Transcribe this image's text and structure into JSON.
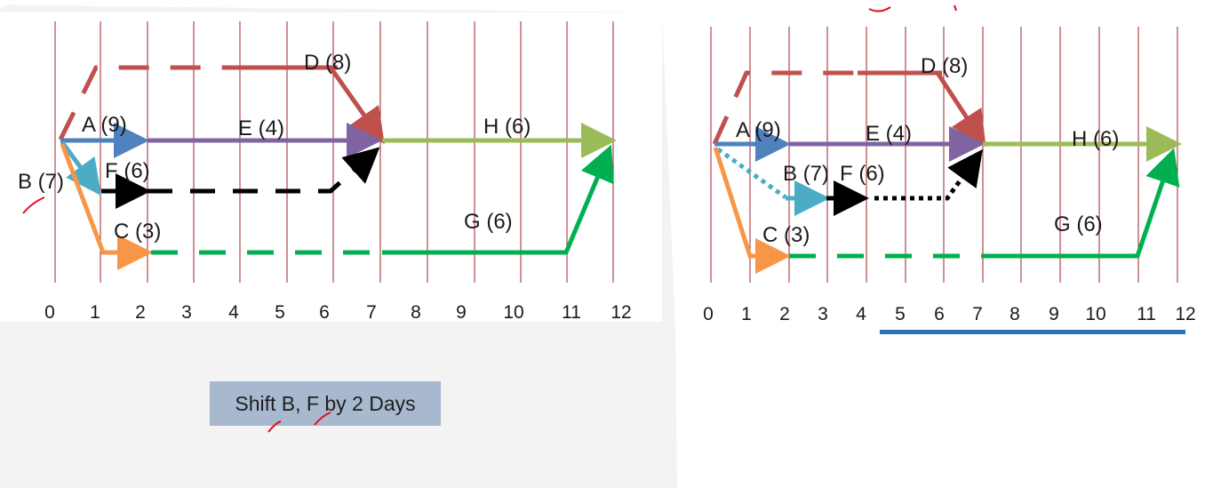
{
  "colors": {
    "background": "#ffffff",
    "shaded_panel": "#f3f3f3",
    "gridline": "#a0222a",
    "activity_A": "#4f81bd",
    "activity_B": "#f79646",
    "activity_B_shifted": "#4bacc6",
    "activity_C": "#f79646",
    "activity_D": "#c0504d",
    "activity_E": "#8064a2",
    "activity_F": "#000000",
    "activity_G": "#00b050",
    "activity_H": "#9bbb59",
    "caption_bg": "#a7b8cf",
    "pen_mark": "#e01020",
    "underline": "#2e74b5"
  },
  "axis_ticks": [
    "0",
    "1",
    "2",
    "3",
    "4",
    "5",
    "6",
    "7",
    "8",
    "9",
    "10",
    "11",
    "12"
  ],
  "left_diagram": {
    "labels": {
      "A": "A (9)",
      "B": "B (7)",
      "C": "C (3)",
      "D": "D (8)",
      "E": "E (4)",
      "F": "F (6)",
      "G": "G (6)",
      "H": "H (6)"
    }
  },
  "right_diagram": {
    "labels": {
      "A": "A (9)",
      "B": "B (7)",
      "C": "C (3)",
      "D": "D (8)",
      "E": "E (4)",
      "F": "F (6)",
      "G": "G (6)",
      "H": "H (6)"
    }
  },
  "caption": "Shift B, F by 2 Days"
}
